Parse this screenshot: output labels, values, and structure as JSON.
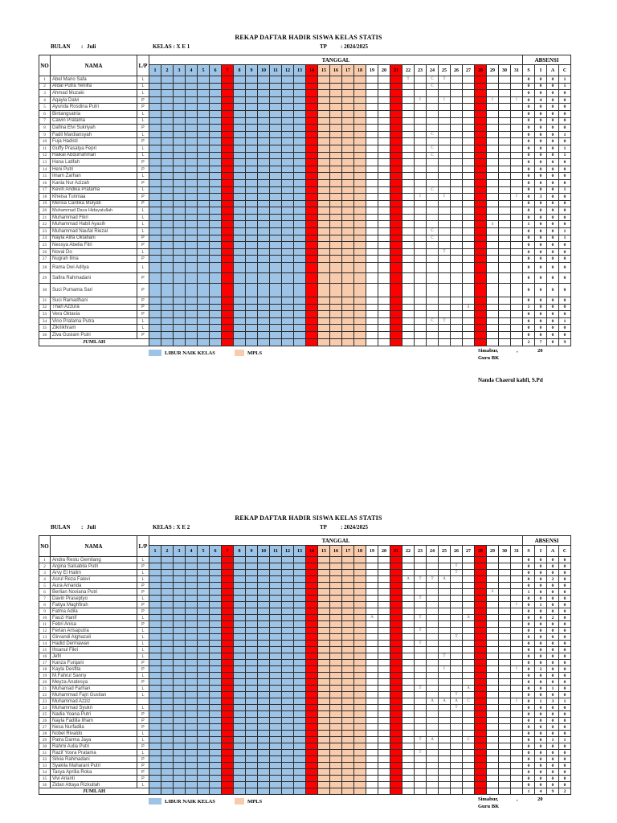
{
  "colors": {
    "blue": "#9DC3E6",
    "red": "#FF0000",
    "orange": "#F8CBAD"
  },
  "legend": {
    "libur": "LIBUR NAIK KELAS",
    "mpls": "MPLS"
  },
  "calendar": {
    "blue_days": [
      1,
      2,
      3,
      4,
      5,
      6,
      8,
      9,
      10,
      11,
      12,
      13
    ],
    "red_days": [
      7,
      14,
      21,
      28
    ],
    "orange_days": [
      15,
      16,
      17,
      18
    ]
  },
  "tables": [
    {
      "title": "REKAP DAFTAR HADIR SISWA KELAS STATIS",
      "bulan": {
        "label": "BULAN",
        "colon": ":",
        "value": "Juli"
      },
      "kelas": "KELAS : X E 1",
      "tp": {
        "label": "TP",
        "value": ": 2024/2025"
      },
      "headers": {
        "no": "NO",
        "nama": "NAMA",
        "lp": "L/P",
        "tanggal": "TANGGAL",
        "absensi": "ABSENSI",
        "days": [
          1,
          2,
          3,
          4,
          5,
          6,
          7,
          8,
          9,
          10,
          11,
          12,
          13,
          14,
          15,
          16,
          17,
          18,
          19,
          20,
          21,
          22,
          23,
          24,
          25,
          26,
          27,
          28,
          29,
          30,
          31
        ],
        "siac": [
          "S",
          "I",
          "A",
          "C"
        ]
      },
      "rows": [
        {
          "no": 1,
          "nama": "Abel Mario Safa",
          "lp": "L",
          "marks": {
            "22": "T",
            "24": "C",
            "25": "T"
          },
          "s": 0,
          "i": 0,
          "a": 0,
          "c": 1
        },
        {
          "no": 2,
          "nama": "Afdal Putra Yenilfa",
          "lp": "L",
          "marks": {
            "24": "C"
          },
          "s": 0,
          "i": 0,
          "a": 0,
          "c": 1
        },
        {
          "no": 3,
          "nama": "Ahmad Muzaki",
          "lp": "L",
          "marks": {},
          "s": 0,
          "i": 0,
          "a": 0,
          "c": 0
        },
        {
          "no": 4,
          "nama": "Aqayla Dalvi",
          "lp": "P",
          "marks": {
            "23": "I",
            "25": "I",
            "29": "I",
            "31": "I"
          },
          "s": 0,
          "i": 4,
          "a": 0,
          "c": 0
        },
        {
          "no": 5,
          "nama": "Ayunda Rosdina Putri",
          "lp": "P",
          "marks": {},
          "s": 0,
          "i": 0,
          "a": 0,
          "c": 0
        },
        {
          "no": 6,
          "nama": "Bintangsatria",
          "lp": "L",
          "marks": {},
          "s": 0,
          "i": 0,
          "a": 0,
          "c": 0
        },
        {
          "no": 7,
          "nama": "Calvin Pratama",
          "lp": "L",
          "marks": {},
          "s": 0,
          "i": 0,
          "a": 0,
          "c": 0
        },
        {
          "no": 8,
          "nama": "Dafina Elvi Sukriyah",
          "lp": "P",
          "marks": {},
          "s": 0,
          "i": 0,
          "a": 0,
          "c": 0
        },
        {
          "no": 9,
          "nama": "Fadil Mardiansyah",
          "lp": "L",
          "marks": {
            "24": "C"
          },
          "s": 0,
          "i": 0,
          "a": 0,
          "c": 1
        },
        {
          "no": 10,
          "nama": "Fuja Hadisti",
          "lp": "P",
          "marks": {},
          "s": 0,
          "i": 0,
          "a": 0,
          "c": 0
        },
        {
          "no": 11,
          "nama": "Guffy Prasatya Fepri",
          "lp": "L",
          "marks": {
            "24": "C"
          },
          "s": 0,
          "i": 0,
          "a": 0,
          "c": 1
        },
        {
          "no": 12,
          "nama": "Haikal Abdurrahman",
          "lp": "L",
          "marks": {
            "24": "C"
          },
          "s": 0,
          "i": 0,
          "a": 0,
          "c": 1
        },
        {
          "no": 13,
          "nama": "Hana Latifah",
          "lp": "P",
          "marks": {},
          "s": 0,
          "i": 0,
          "a": 0,
          "c": 0
        },
        {
          "no": 14,
          "nama": "Heni Putri",
          "lp": "P",
          "marks": {},
          "s": 0,
          "i": 0,
          "a": 0,
          "c": 0
        },
        {
          "no": 15,
          "nama": "Imam Zarhan",
          "lp": "L",
          "marks": {},
          "s": 0,
          "i": 0,
          "a": 0,
          "c": 0
        },
        {
          "no": 16,
          "nama": "Kania Nur Azizah",
          "lp": "P",
          "marks": {},
          "s": 0,
          "i": 0,
          "a": 0,
          "c": 0
        },
        {
          "no": 17,
          "nama": "Kevin Andika Pratama",
          "lp": "L",
          "marks": {
            "24": "C"
          },
          "s": 0,
          "i": 0,
          "a": 0,
          "c": 1
        },
        {
          "no": 18,
          "nama": "Kheisa Tunniaa",
          "lp": "P",
          "marks": {
            "23": "I",
            "25": "I",
            "31": "I"
          },
          "s": 0,
          "i": 3,
          "a": 0,
          "c": 0
        },
        {
          "no": 19,
          "nama": "Merisa Cantika Mulyati",
          "lp": "P",
          "marks": {},
          "s": 0,
          "i": 0,
          "a": 0,
          "c": 0
        },
        {
          "no": 20,
          "nama": "Muhammad Dava Hidayatullah",
          "lp": "L",
          "marks": {},
          "s": 0,
          "i": 0,
          "a": 0,
          "c": 0
        },
        {
          "no": 21,
          "nama": "Muhammad Fikri",
          "lp": "L",
          "marks": {},
          "s": 0,
          "i": 0,
          "a": 0,
          "c": 0
        },
        {
          "no": 22,
          "nama": "Muhammad Habil Ayasih",
          "lp": "L",
          "marks": {
            "29": "S"
          },
          "s": 1,
          "i": 0,
          "a": 0,
          "c": 0
        },
        {
          "no": 23,
          "nama": "Muhammad Naufal Riezal",
          "lp": "L",
          "marks": {
            "24": "C"
          },
          "s": 0,
          "i": 0,
          "a": 0,
          "c": 1
        },
        {
          "no": 24,
          "nama": "Nayla Alifa Oktafiani",
          "lp": "P",
          "marks": {
            "24": "C"
          },
          "s": 0,
          "i": 0,
          "a": 0,
          "c": 1
        },
        {
          "no": 25,
          "nama": "Nessya Abelia Fitri",
          "lp": "P",
          "marks": {},
          "s": 0,
          "i": 0,
          "a": 0,
          "c": 0
        },
        {
          "no": 26,
          "nama": "Noval Do",
          "lp": "L",
          "marks": {
            "25": "T"
          },
          "s": 0,
          "i": 0,
          "a": 0,
          "c": 0
        },
        {
          "no": 27,
          "nama": "Nugrah Ilma",
          "lp": "P",
          "marks": {},
          "s": 0,
          "i": 0,
          "a": 0,
          "c": 0
        },
        {
          "no": 28,
          "nama": "Rama Dwi Aditya",
          "lp": "L",
          "marks": {},
          "s": 0,
          "i": 0,
          "a": 0,
          "c": 0
        },
        {
          "no": 29,
          "nama": "Safira Rahmadani",
          "lp": "P",
          "marks": {},
          "s": 0,
          "i": 0,
          "a": 0,
          "c": 0
        },
        {
          "no": 30,
          "nama": "Suci Purnama Sari",
          "lp": "P",
          "marks": {},
          "s": 0,
          "i": 0,
          "a": 0,
          "c": 0
        },
        {
          "no": 31,
          "nama": "Suci Ramadhani",
          "lp": "P",
          "marks": {},
          "s": 0,
          "i": 0,
          "a": 0,
          "c": 0
        },
        {
          "no": 32,
          "nama": "Thari Azzura",
          "lp": "P",
          "marks": {
            "27": "S"
          },
          "s": 1,
          "i": 0,
          "a": 0,
          "c": 0
        },
        {
          "no": 33,
          "nama": "Vera Oktavia",
          "lp": "P",
          "marks": {},
          "s": 0,
          "i": 0,
          "a": 0,
          "c": 0
        },
        {
          "no": 34,
          "nama": "Vino Pratama Putra",
          "lp": "L",
          "marks": {
            "24": "C",
            "25": "T"
          },
          "s": 0,
          "i": 0,
          "a": 0,
          "c": 1
        },
        {
          "no": 35,
          "nama": "Zikriikhram",
          "lp": "L",
          "marks": {},
          "s": 0,
          "i": 0,
          "a": 0,
          "c": 0
        },
        {
          "no": 36,
          "nama": "Ziva Guslam Putri",
          "lp": "P",
          "marks": {},
          "s": 0,
          "i": 0,
          "a": 0,
          "c": 0
        }
      ],
      "jumlah": {
        "label": "JUMLAH",
        "s": 2,
        "i": 7,
        "a": 0,
        "c": 9
      },
      "sign": {
        "place": "Simabur,",
        "comma": ",",
        "year": "20",
        "role": "Guru BK",
        "name": "Nanda Chaerul kahfi, S.Pd"
      }
    },
    {
      "title": "REKAP DAFTAR HADIR SISWA KELAS STATIS",
      "bulan": {
        "label": "BULAN",
        "colon": ":",
        "value": "Juli"
      },
      "kelas": "KELAS : X E 2",
      "tp": {
        "label": "TP",
        "value": ": 2024/2025"
      },
      "headers": {
        "no": "NO",
        "nama": "NAMA",
        "lp": "L/P",
        "tanggal": "TANGGAL",
        "absensi": "ABSENSI",
        "days": [
          1,
          2,
          3,
          4,
          5,
          6,
          7,
          8,
          9,
          10,
          11,
          12,
          13,
          14,
          15,
          16,
          17,
          18,
          19,
          20,
          21,
          22,
          23,
          24,
          25,
          26,
          27,
          28,
          29,
          30,
          31
        ],
        "siac": [
          "S",
          "I",
          "A",
          "C"
        ]
      },
      "rows": [
        {
          "no": 1,
          "nama": "Andra Restu Gemilang",
          "lp": "L",
          "marks": {},
          "s": 0,
          "i": 0,
          "a": 0,
          "c": 0
        },
        {
          "no": 2,
          "nama": "Argina Salsabila Putri",
          "lp": "P",
          "marks": {
            "26": "T"
          },
          "s": 0,
          "i": 0,
          "a": 0,
          "c": 0
        },
        {
          "no": 3,
          "nama": "Arvy El Halim",
          "lp": "L",
          "marks": {
            "26": "T"
          },
          "s": 0,
          "i": 0,
          "a": 0,
          "c": 0
        },
        {
          "no": 4,
          "nama": "Asrul Reza Falevi",
          "lp": "L",
          "marks": {
            "22": "A",
            "23": "T",
            "24": "T",
            "25": "A"
          },
          "s": 0,
          "i": 0,
          "a": 2,
          "c": 0
        },
        {
          "no": 5,
          "nama": "Aura Amanda",
          "lp": "P",
          "marks": {},
          "s": 0,
          "i": 0,
          "a": 0,
          "c": 0
        },
        {
          "no": 6,
          "nama": "Berlian Noviana Putri",
          "lp": "P",
          "marks": {
            "29": "S"
          },
          "s": 1,
          "i": 0,
          "a": 0,
          "c": 0
        },
        {
          "no": 7,
          "nama": "Davin Praseptyo",
          "lp": "L",
          "marks": {
            "23": "T"
          },
          "s": 0,
          "i": 0,
          "a": 0,
          "c": 0
        },
        {
          "no": 8,
          "nama": "Fatiya Maghfirah",
          "lp": "P",
          "marks": {
            "31": "I"
          },
          "s": 0,
          "i": 1,
          "a": 0,
          "c": 0
        },
        {
          "no": 9,
          "nama": "Fatma Adila",
          "lp": "P",
          "marks": {},
          "s": 0,
          "i": 0,
          "a": 0,
          "c": 0
        },
        {
          "no": 10,
          "nama": "Fauzi Hanif",
          "lp": "L",
          "marks": {
            "19": "A",
            "23": "T",
            "27": "A"
          },
          "s": 0,
          "i": 0,
          "a": 2,
          "c": 0
        },
        {
          "no": 11,
          "nama": "Febri Anisa",
          "lp": "P",
          "marks": {},
          "s": 0,
          "i": 0,
          "a": 0,
          "c": 0
        },
        {
          "no": 12,
          "nama": "Ferlan Arisaputra",
          "lp": "L",
          "marks": {
            "23": "T"
          },
          "s": 0,
          "i": 0,
          "a": 0,
          "c": 0
        },
        {
          "no": 13,
          "nama": "Girvandi Alghazali",
          "lp": "L",
          "marks": {
            "26": "T"
          },
          "s": 0,
          "i": 0,
          "a": 0,
          "c": 0
        },
        {
          "no": 14,
          "nama": "Hadid Dermawan",
          "lp": "L",
          "marks": {
            "23": "T"
          },
          "s": 0,
          "i": 0,
          "a": 0,
          "c": 0
        },
        {
          "no": 15,
          "nama": "Ihsanul Fikri",
          "lp": "L",
          "marks": {},
          "s": 0,
          "i": 0,
          "a": 0,
          "c": 0
        },
        {
          "no": 16,
          "nama": "Jefri",
          "lp": "L",
          "marks": {
            "25": "T"
          },
          "s": 0,
          "i": 0,
          "a": 0,
          "c": 0
        },
        {
          "no": 17,
          "nama": "Kanza Furqani",
          "lp": "P",
          "marks": {},
          "s": 0,
          "i": 0,
          "a": 0,
          "c": 0
        },
        {
          "no": 18,
          "nama": "Kayla Desfita",
          "lp": "P",
          "marks": {
            "25": "I",
            "31": "I"
          },
          "s": 0,
          "i": 2,
          "a": 0,
          "c": 0
        },
        {
          "no": 19,
          "nama": "M.Fahrul Sanny",
          "lp": "L",
          "marks": {},
          "s": 0,
          "i": 0,
          "a": 0,
          "c": 0
        },
        {
          "no": 20,
          "nama": "Meyza Anatesya",
          "lp": "P",
          "marks": {},
          "s": 0,
          "i": 0,
          "a": 0,
          "c": 0
        },
        {
          "no": 21,
          "nama": "Muhamad Farhan",
          "lp": "L",
          "marks": {
            "23": "T",
            "27": "A"
          },
          "s": 0,
          "i": 0,
          "a": 1,
          "c": 0
        },
        {
          "no": 22,
          "nama": "Muhammad Fajri Gustian",
          "lp": "L",
          "marks": {
            "26": "T"
          },
          "s": 0,
          "i": 0,
          "a": 0,
          "c": 0
        },
        {
          "no": 23,
          "nama": "Muhammad Azziz",
          "lp": "",
          "marks": {
            "24": "A",
            "25": "A",
            "26": "A",
            "27": "C",
            "31": "I"
          },
          "s": 0,
          "i": 1,
          "a": 3,
          "c": 1
        },
        {
          "no": 24,
          "nama": "Muhammad Syukri",
          "lp": "L",
          "marks": {
            "26": "T"
          },
          "s": 0,
          "i": 0,
          "a": 0,
          "c": 0
        },
        {
          "no": 25,
          "nama": "Nadia Yoana Putri",
          "lp": "P",
          "marks": {},
          "s": 0,
          "i": 0,
          "a": 0,
          "c": 0
        },
        {
          "no": 26,
          "nama": "Nayla Fadilla Ilham",
          "lp": "P",
          "marks": {},
          "s": 0,
          "i": 0,
          "a": 0,
          "c": 0
        },
        {
          "no": 27,
          "nama": "Nesa Nurfadila",
          "lp": "P",
          "marks": {},
          "s": 0,
          "i": 0,
          "a": 0,
          "c": 0
        },
        {
          "no": 28,
          "nama": "Nobel Rivaldo",
          "lp": "L",
          "marks": {},
          "s": 0,
          "i": 0,
          "a": 0,
          "c": 0
        },
        {
          "no": 29,
          "nama": "Patra Darma Jaya",
          "lp": "L",
          "marks": {
            "23": "T",
            "24": "A",
            "27": "C"
          },
          "s": 0,
          "i": 0,
          "a": 1,
          "c": 1
        },
        {
          "no": 30,
          "nama": "Rahmi Aulia Putri",
          "lp": "P",
          "marks": {},
          "s": 0,
          "i": 0,
          "a": 0,
          "c": 0
        },
        {
          "no": 31,
          "nama": "Razif Yosra Pratama",
          "lp": "L",
          "marks": {
            "23": "T"
          },
          "s": 0,
          "i": 0,
          "a": 0,
          "c": 0
        },
        {
          "no": 32,
          "nama": "Silvia Rahmadani",
          "lp": "P",
          "marks": {},
          "s": 0,
          "i": 0,
          "a": 0,
          "c": 0
        },
        {
          "no": 33,
          "nama": "Syakila Maharani Putri",
          "lp": "P",
          "marks": {},
          "s": 0,
          "i": 0,
          "a": 0,
          "c": 0
        },
        {
          "no": 34,
          "nama": "Tasya Aprilia Roka",
          "lp": "P",
          "marks": {},
          "s": 0,
          "i": 0,
          "a": 0,
          "c": 0
        },
        {
          "no": 35,
          "nama": "Vivi Arianti",
          "lp": "P",
          "marks": {},
          "s": 0,
          "i": 0,
          "a": 0,
          "c": 0
        },
        {
          "no": 36,
          "nama": "Zidan Attaya Rizkullah",
          "lp": "L",
          "marks": {},
          "s": 0,
          "i": 0,
          "a": 0,
          "c": 0
        }
      ],
      "jumlah": {
        "label": "JUMLAH",
        "s": 1,
        "i": 4,
        "a": 9,
        "c": 2
      },
      "sign": {
        "place": "Simabur,",
        "comma": ",",
        "year": "20",
        "role": "Guru BK"
      }
    }
  ]
}
